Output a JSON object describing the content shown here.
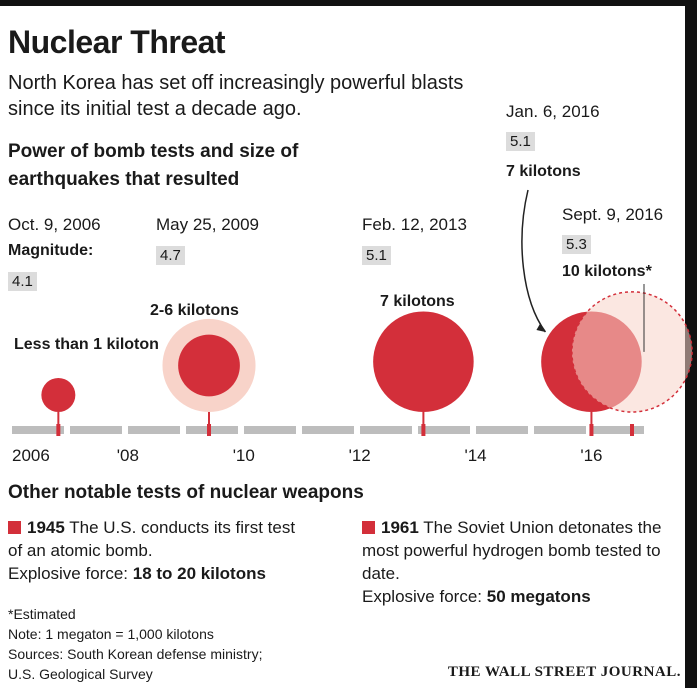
{
  "title": "Nuclear Threat",
  "subtitle": "North Korea has set off increasingly powerful blasts since its initial test a decade ago.",
  "chart_heading": "Power of bomb tests and size of earthquakes that resulted",
  "magnitude_label": "Magnitude:",
  "colors": {
    "accent": "#d32f3a",
    "halo": "#f8d3c9",
    "axis": "#bdbdbd"
  },
  "chart_data": {
    "type": "scatter",
    "x_tick_labels": [
      "2006",
      "'08",
      "'10",
      "'12",
      "'14",
      "'16"
    ],
    "xlim": [
      2006.0,
      2016.7
    ],
    "events": [
      {
        "date": "Oct. 9, 2006",
        "x": 2006.8,
        "magnitude": "4.1",
        "yield_label": "Less than 1 kiloton",
        "yield_kt": 0.8
      },
      {
        "date": "May 25, 2009",
        "x": 2009.4,
        "magnitude": "4.7",
        "yield_label": "2-6 kilotons",
        "yield_kt": 4,
        "range_kt": [
          2,
          6
        ]
      },
      {
        "date": "Feb. 12, 2013",
        "x": 2013.1,
        "magnitude": "5.1",
        "yield_label": "7 kilotons",
        "yield_kt": 7
      },
      {
        "date": "Jan. 6, 2016",
        "x": 2016.0,
        "magnitude": "5.1",
        "yield_label": "7 kilotons",
        "yield_kt": 7
      },
      {
        "date": "Sept. 9, 2016",
        "x": 2016.7,
        "magnitude": "5.3",
        "yield_label": "10 kilotons*",
        "yield_kt": 10,
        "estimated": true
      }
    ]
  },
  "other_tests": {
    "heading": "Other notable tests of nuclear weapons",
    "left": {
      "year": "1945",
      "text": "The U.S. conducts its first test of an atomic bomb.",
      "force_label": "Explosive force:",
      "force_value": "18 to 20 kilotons"
    },
    "right": {
      "year": "1961",
      "text": "The Soviet Union detonates the most powerful hydrogen bomb tested to date.",
      "force_label": "Explosive force:",
      "force_value": "50 megatons"
    }
  },
  "footnotes": {
    "estimated": "*Estimated",
    "note": "Note: 1 megaton = 1,000 kilotons",
    "sources_1": "Sources: South Korean defense ministry;",
    "sources_2": "U.S. Geological Survey"
  },
  "publisher": "THE WALL STREET JOURNAL."
}
